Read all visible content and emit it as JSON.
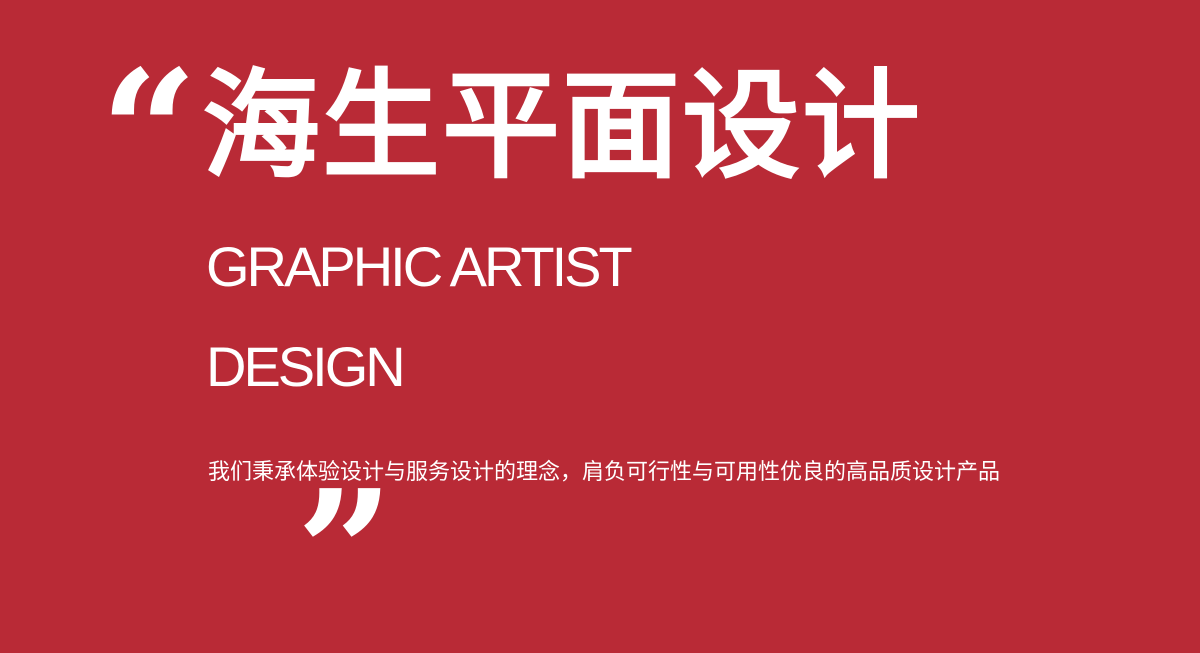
{
  "banner": {
    "open_quote": "“",
    "title_cn": "海生平面设计",
    "title_en_line1": "GRAPHIC ARTIST",
    "title_en_line2": "DESIGN",
    "description": "我们秉承体验设计与服务设计的理念，肩负可行性与可用性优良的高品质设计产品",
    "close_quote": "”",
    "colors": {
      "background": "#b92a36",
      "text": "#ffffff"
    }
  }
}
